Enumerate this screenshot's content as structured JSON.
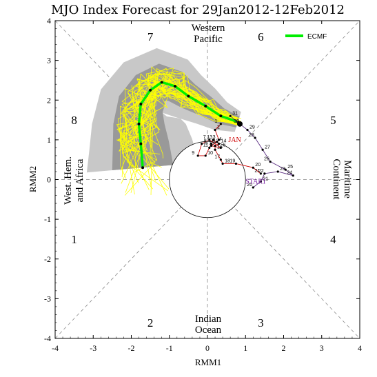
{
  "chart_data": {
    "type": "scatter",
    "title": "MJO Index Forecast for 29Jan2012-12Feb2012",
    "xlabel": "RMM1",
    "ylabel": "RMM2",
    "xlim": [
      -4,
      4
    ],
    "ylim": [
      -4,
      4
    ],
    "x_ticks": [
      "-4",
      "-3",
      "-2",
      "-1",
      "0",
      "1",
      "2",
      "3",
      "4"
    ],
    "y_ticks": [
      "-4",
      "-3",
      "-2",
      "-1",
      "0",
      "1",
      "2",
      "3",
      "4"
    ],
    "grid": false,
    "legend_position": "top-right",
    "phase_labels": [
      {
        "text": "1",
        "x": -3.5,
        "y": -1.5
      },
      {
        "text": "2",
        "x": -1.5,
        "y": -3.6
      },
      {
        "text": "3",
        "x": 1.4,
        "y": -3.6
      },
      {
        "text": "4",
        "x": 3.3,
        "y": -1.5
      },
      {
        "text": "5",
        "x": 3.3,
        "y": 1.5
      },
      {
        "text": "6",
        "x": 1.4,
        "y": 3.6
      },
      {
        "text": "7",
        "x": -1.5,
        "y": 3.6
      },
      {
        "text": "8",
        "x": -3.5,
        "y": 1.5
      }
    ],
    "region_labels": {
      "west_hem": [
        "West. Hem.",
        "and Africa"
      ],
      "maritime": [
        "Maritime",
        "Continent"
      ],
      "western_pacific": [
        "Western",
        "Pacific"
      ],
      "indian_ocean": [
        "Indian",
        "Ocean"
      ]
    },
    "series": [
      {
        "name": "ECMF",
        "color": "#00ee00",
        "x": [
          0.8,
          0.35,
          -0.05,
          -0.5,
          -0.85,
          -1.2,
          -1.5,
          -1.75,
          -1.8,
          -1.75,
          -1.7
        ],
        "y": [
          1.45,
          1.6,
          1.85,
          2.1,
          2.35,
          2.45,
          2.25,
          1.9,
          1.4,
          0.9,
          0.3
        ]
      },
      {
        "name": "ensemble_members",
        "color": "#ffff00",
        "x_base": [
          0.8,
          0.35,
          -0.05,
          -0.5,
          -0.85,
          -1.2,
          -1.5,
          -1.75,
          -1.8,
          -1.75,
          -1.7
        ]
      },
      {
        "name": "observed",
        "color": "#000000",
        "points": [
          {
            "label": "20",
            "x": 1.2,
            "y": -0.2
          },
          {
            "label": "21",
            "x": 1.4,
            "y": -0.05
          },
          {
            "label": "22",
            "x": 1.5,
            "y": 0.15
          },
          {
            "label": "23",
            "x": 1.85,
            "y": 0.2
          },
          {
            "label": "24",
            "x": 2.25,
            "y": 0.1
          },
          {
            "label": "25",
            "x": 2.05,
            "y": 0.25
          },
          {
            "label": "26",
            "x": 1.65,
            "y": 0.45
          },
          {
            "label": "27",
            "x": 1.45,
            "y": 0.75
          },
          {
            "label": "28",
            "x": 1.25,
            "y": 1.05
          },
          {
            "label": "29",
            "x": 1.05,
            "y": 1.25
          },
          {
            "label": "30",
            "x": 0.85,
            "y": 1.4
          },
          {
            "label": "31",
            "x": 0.6,
            "y": 1.6
          }
        ]
      },
      {
        "name": "JAN",
        "color": "#cc0000",
        "points": [
          {
            "label": "1",
            "x": 0.35,
            "y": 1.4
          },
          {
            "label": "2",
            "x": 0.2,
            "y": 1.25
          },
          {
            "label": "3",
            "x": 0.3,
            "y": 1.0
          },
          {
            "label": "4",
            "x": 0.25,
            "y": 0.95
          },
          {
            "label": "5",
            "x": 0.1,
            "y": 0.85
          },
          {
            "label": "6",
            "x": 0.35,
            "y": 0.8
          },
          {
            "label": "7",
            "x": 0.05,
            "y": 1.0
          },
          {
            "label": "8",
            "x": -0.15,
            "y": 0.9
          },
          {
            "label": "9",
            "x": -0.25,
            "y": 0.6
          },
          {
            "label": "10",
            "x": -0.05,
            "y": 0.6
          },
          {
            "label": "11",
            "x": 0.05,
            "y": 0.8
          },
          {
            "label": "12",
            "x": 0.1,
            "y": 0.9
          },
          {
            "label": "13",
            "x": 0.15,
            "y": 1.0
          },
          {
            "label": "14",
            "x": 0.3,
            "y": 0.9
          },
          {
            "label": "15",
            "x": 0.2,
            "y": 0.85
          },
          {
            "label": "16",
            "x": 0.2,
            "y": 0.75
          },
          {
            "label": "17",
            "x": 0.35,
            "y": 0.5
          },
          {
            "label": "18",
            "x": 0.4,
            "y": 0.4
          },
          {
            "label": "19",
            "x": 0.75,
            "y": 0.4
          },
          {
            "label": "20",
            "x": 1.2,
            "y": 0.3
          },
          {
            "label": "21",
            "x": 1.4,
            "y": 0.15
          }
        ]
      }
    ],
    "annotations": [
      {
        "text": "JAN",
        "color": "#cc0000",
        "x": 0.55,
        "y": 0.95
      },
      {
        "text": "START",
        "color": "#7a1fa2",
        "x": 1.0,
        "y": -0.1
      }
    ]
  }
}
